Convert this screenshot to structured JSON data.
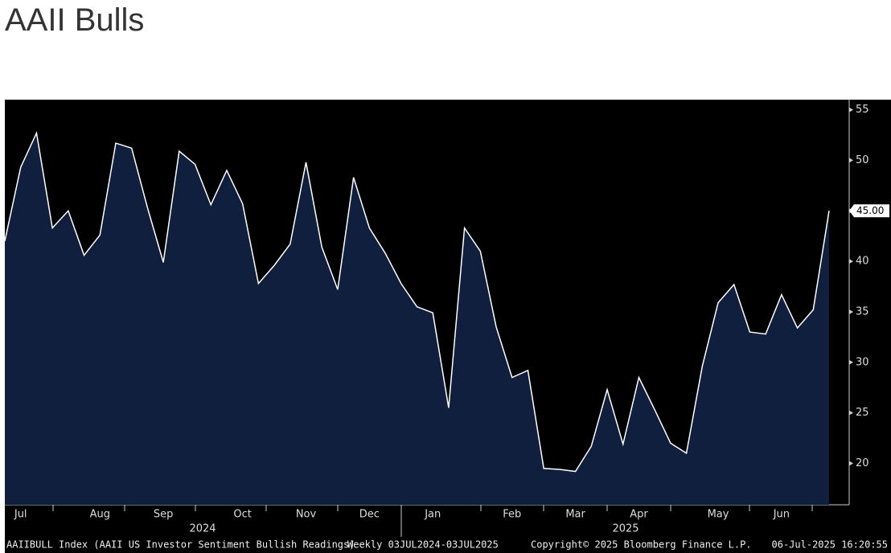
{
  "chart_data": {
    "type": "area",
    "title": "AAII Bulls",
    "categories": [
      null,
      "Jul",
      null,
      null,
      null,
      null,
      "Aug",
      null,
      null,
      null,
      "Sep",
      null,
      null,
      null,
      null,
      "Oct",
      null,
      null,
      null,
      "Nov",
      null,
      null,
      null,
      "Dec",
      null,
      null,
      null,
      "Jan",
      null,
      null,
      null,
      null,
      "Feb",
      null,
      null,
      null,
      "Mar",
      null,
      null,
      null,
      "Apr",
      null,
      null,
      null,
      null,
      "May",
      null,
      null,
      null,
      "Jun",
      null,
      null,
      null
    ],
    "values": [
      42.0,
      49.3,
      52.7,
      43.3,
      45.0,
      40.6,
      42.6,
      51.7,
      51.2,
      45.3,
      39.9,
      50.9,
      49.6,
      45.6,
      49.0,
      45.7,
      37.8,
      39.6,
      41.7,
      49.8,
      41.4,
      37.2,
      48.3,
      43.3,
      40.8,
      37.8,
      35.5,
      34.9,
      25.5,
      43.3,
      41.0,
      33.5,
      28.5,
      29.2,
      19.5,
      19.4,
      19.2,
      21.7,
      27.3,
      21.9,
      28.5,
      25.3,
      22.0,
      21.0,
      29.6,
      35.9,
      37.7,
      33.0,
      32.8,
      36.7,
      33.4,
      35.2,
      45.0
    ],
    "value_labels": [
      null,
      null,
      null,
      null,
      null,
      null,
      null,
      null,
      null,
      null,
      null,
      null,
      null,
      null,
      null,
      null,
      null,
      null,
      null,
      null,
      null,
      null,
      null,
      null,
      null,
      null,
      null,
      null,
      null,
      null,
      null,
      null,
      null,
      null,
      null,
      null,
      null,
      null,
      null,
      null,
      null,
      null,
      null,
      null,
      null,
      null,
      null,
      null,
      null,
      null,
      null,
      null,
      "45.00"
    ],
    "years": [
      "2024",
      "2025"
    ],
    "color": "#0f1f3d",
    "line_color": "#ffffff",
    "ylim": [
      15.9,
      56
    ],
    "yticks": [
      20,
      25,
      30,
      35,
      40,
      45,
      50,
      55
    ],
    "grid": false,
    "footer": {
      "source": "AAIIBULL Index (AAII US Investor Sentiment Bullish Readings)",
      "period": "Weekly 03JUL2024-03JUL2025",
      "copyright": "Copyright© 2025 Bloomberg Finance L.P.",
      "timestamp": "06-Jul-2025 16:20:55"
    }
  }
}
